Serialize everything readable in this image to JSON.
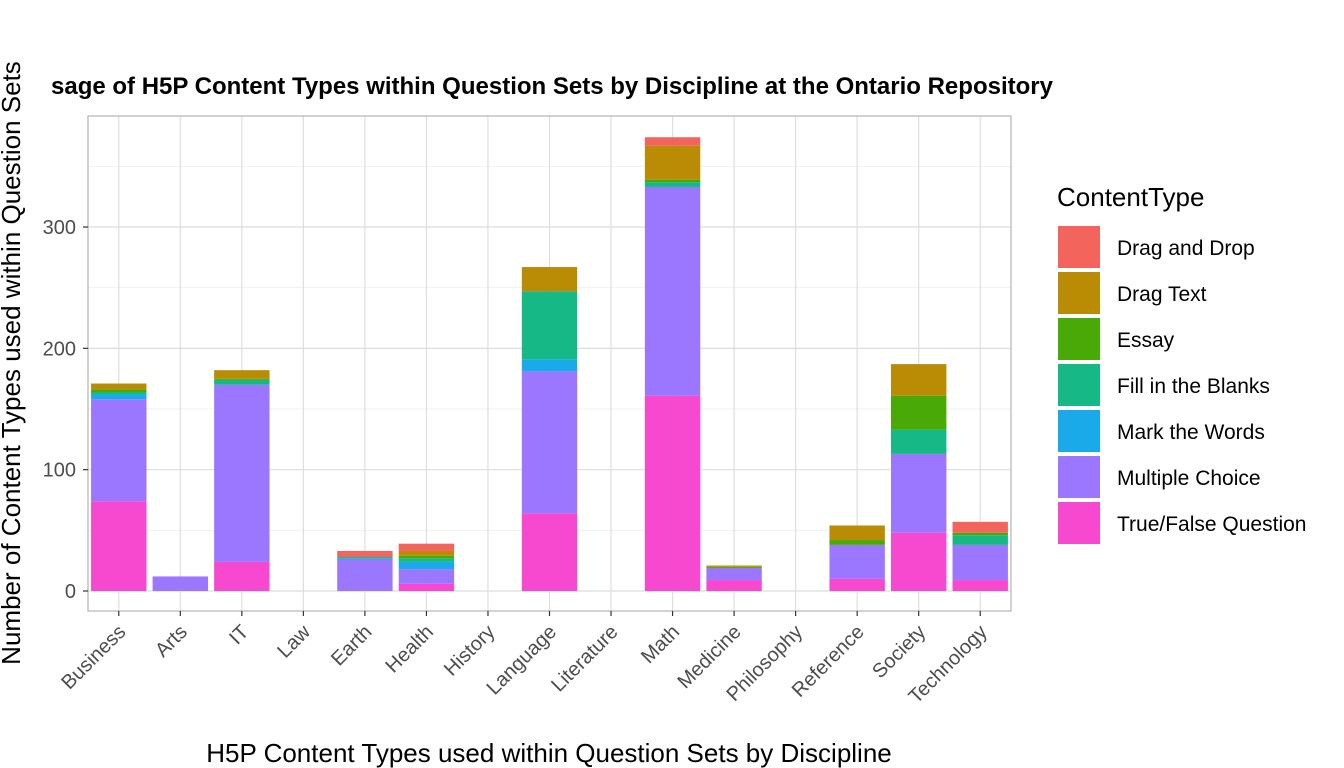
{
  "chart_data": {
    "type": "bar",
    "stacked": true,
    "title": "sage of H5P Content Types within Question Sets by Discipline at the Ontario Repository",
    "xlabel": "H5P Content Types used within Question Sets by Discipline",
    "ylabel": "Number of Content Types used within Question Sets",
    "ylim": [
      -18,
      390
    ],
    "yticks": [
      0,
      100,
      200,
      300
    ],
    "grid": true,
    "legend_position": "right",
    "legend_title": "ContentType",
    "categories": [
      "Business",
      "Arts",
      "IT",
      "Law",
      "Earth",
      "Health",
      "History",
      "Language",
      "Literature",
      "Math",
      "Medicine",
      "Philosophy",
      "Reference",
      "Society",
      "Technology"
    ],
    "series": [
      {
        "name": "True/False Question",
        "color": "#F748D0",
        "values": [
          74,
          0,
          24,
          0,
          0,
          6,
          0,
          64,
          0,
          161,
          9,
          0,
          10,
          48,
          9
        ]
      },
      {
        "name": "Multiple Choice",
        "color": "#9B76FF",
        "values": [
          84,
          12,
          146,
          0,
          26,
          12,
          0,
          117,
          0,
          172,
          10,
          0,
          28,
          65,
          29
        ]
      },
      {
        "name": "Mark the Words",
        "color": "#1AA9E9",
        "values": [
          4,
          0,
          0,
          0,
          1,
          6,
          0,
          10,
          0,
          0,
          0,
          0,
          0,
          0,
          0
        ]
      },
      {
        "name": "Fill in the Blanks",
        "color": "#16B985",
        "values": [
          2,
          0,
          4,
          0,
          1,
          3,
          0,
          56,
          0,
          4,
          0,
          0,
          0,
          20,
          8
        ]
      },
      {
        "name": "Essay",
        "color": "#49A906",
        "values": [
          2,
          0,
          1,
          0,
          0,
          2,
          0,
          0,
          0,
          2,
          1,
          0,
          4,
          28,
          2
        ]
      },
      {
        "name": "Drag Text",
        "color": "#BA8B04",
        "values": [
          5,
          0,
          7,
          0,
          0,
          4,
          0,
          20,
          0,
          28,
          1,
          0,
          12,
          26,
          0
        ]
      },
      {
        "name": "Drag and Drop",
        "color": "#F3645C",
        "values": [
          0,
          0,
          0,
          0,
          5,
          6,
          0,
          0,
          0,
          7,
          0,
          0,
          0,
          0,
          9
        ]
      }
    ],
    "legend_order": [
      "Drag and Drop",
      "Drag Text",
      "Essay",
      "Fill in the Blanks",
      "Mark the Words",
      "Multiple Choice",
      "True/False Question"
    ]
  }
}
